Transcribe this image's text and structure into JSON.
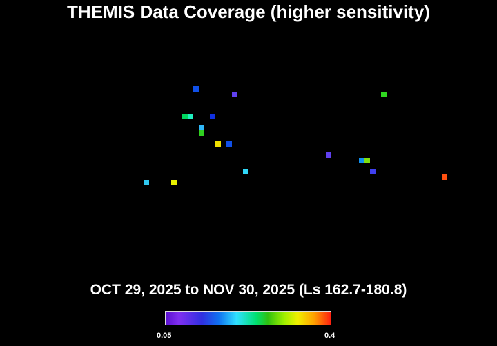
{
  "chart_data": {
    "type": "scatter",
    "title": "THEMIS Data Coverage (higher sensitivity)",
    "subtitle": "OCT 29, 2025 to NOV 30, 2025 (Ls 162.7-180.8)",
    "axes_visible": false,
    "grid": false,
    "colorbar": {
      "min_label": "0.05",
      "max_label": "0.4",
      "range": [
        0.05,
        0.4
      ],
      "colormap": "rainbow",
      "placement": "bottom"
    },
    "points": [
      {
        "value": 0.11,
        "color": "#1050e8"
      },
      {
        "value": 0.07,
        "color": "#6040f0"
      },
      {
        "value": 0.24,
        "color": "#30d820"
      },
      {
        "value": 0.21,
        "color": "#00d860"
      },
      {
        "value": 0.19,
        "color": "#20f0c0"
      },
      {
        "value": 0.1,
        "color": "#1030e0"
      },
      {
        "value": 0.15,
        "color": "#30b8f8"
      },
      {
        "value": 0.24,
        "color": "#30d020"
      },
      {
        "value": 0.31,
        "color": "#f0e000"
      },
      {
        "value": 0.11,
        "color": "#1050e8"
      },
      {
        "value": 0.07,
        "color": "#6040f0"
      },
      {
        "value": 0.13,
        "color": "#1090f0"
      },
      {
        "value": 0.27,
        "color": "#80e010"
      },
      {
        "value": 0.09,
        "color": "#4040f0"
      },
      {
        "value": 0.17,
        "color": "#30d8f8"
      },
      {
        "value": 0.16,
        "color": "#30c8f0"
      },
      {
        "value": 0.3,
        "color": "#e8f000"
      },
      {
        "value": 0.38,
        "color": "#ff5010"
      }
    ]
  }
}
